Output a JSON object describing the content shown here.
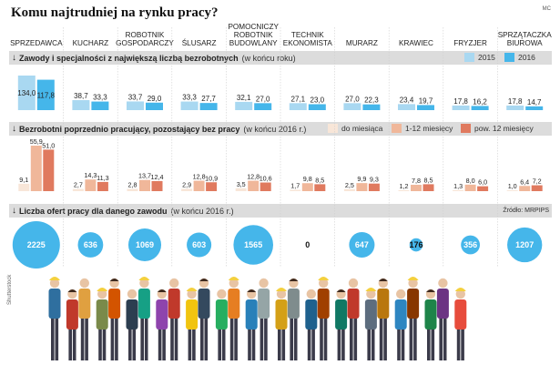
{
  "header": {
    "title": "Komu najtrudniej na rynku pracy?",
    "corner_mark": "MC"
  },
  "colors": {
    "light_blue": "#a9d8f1",
    "mid_blue": "#45b6ea",
    "peach_light": "#f8e6d8",
    "peach_mid": "#f0b79a",
    "salmon": "#e07a5f",
    "band_gray": "#dcdcdc"
  },
  "professions": [
    "SPRZEDAWCA",
    "KUCHARZ",
    "ROBOTNIK GOSPODARCZY",
    "ŚLUSARZ",
    "POMOCNICZY ROBOTNIK BUDOWLANY",
    "TECHNIK EKONOMISTA",
    "MURARZ",
    "KRAWIEC",
    "FRYZJER",
    "SPRZĄTACZKA BIUROWA"
  ],
  "sections": {
    "s1_bold": "Zawody i specjalności  z największą liczbą bezrobotnych",
    "s1_note": "(w końcu roku)",
    "s2_bold": "Bezrobotni poprzednio pracujący, pozostający bez pracy",
    "s2_note": "(w końcu 2016 r.)",
    "s3_bold": "Liczba ofert pracy dla danego zawodu",
    "s3_note": "(w końcu 2016 r.)"
  },
  "source": "Źródło: MRPIPS",
  "photo_credit": "Shutterstock",
  "chart_data": [
    {
      "type": "bar",
      "title": "Zawody i specjalności  z największą liczbą bezrobotnych",
      "categories": [
        "SPRZEDAWCA",
        "KUCHARZ",
        "ROBOTNIK GOSPODARCZY",
        "ŚLUSARZ",
        "POMOCNICZY ROBOTNIK BUDOWLANY",
        "TECHNIK EKONOMISTA",
        "MURARZ",
        "KRAWIEC",
        "FRYZJER",
        "SPRZĄTACZKA BIUROWA"
      ],
      "series": [
        {
          "name": "2015",
          "color": "#a9d8f1",
          "values": [
            134.0,
            38.7,
            33.7,
            33.3,
            32.1,
            27.1,
            27.0,
            23.4,
            17.8,
            17.8
          ]
        },
        {
          "name": "2016",
          "color": "#45b6ea",
          "values": [
            117.8,
            33.3,
            29.0,
            27.7,
            27.0,
            23.0,
            22.3,
            19.7,
            16.2,
            14.7
          ]
        }
      ],
      "labels": [
        [
          "134,0",
          "117,8"
        ],
        [
          "38,7",
          "33,3"
        ],
        [
          "33,7",
          "29,0"
        ],
        [
          "33,3",
          "27,7"
        ],
        [
          "32,1",
          "27,0"
        ],
        [
          "27,1",
          "23,0"
        ],
        [
          "27,0",
          "22,3"
        ],
        [
          "23,4",
          "19,7"
        ],
        [
          "17,8",
          "16,2"
        ],
        [
          "17,8",
          "14,7"
        ]
      ],
      "legend": "top-right"
    },
    {
      "type": "bar",
      "title": "Bezrobotni poprzednio pracujący, pozostający bez pracy",
      "categories": [
        "SPRZEDAWCA",
        "KUCHARZ",
        "ROBOTNIK GOSPODARCZY",
        "ŚLUSARZ",
        "POMOCNICZY ROBOTNIK BUDOWLANY",
        "TECHNIK EKONOMISTA",
        "MURARZ",
        "KRAWIEC",
        "FRYZJER",
        "SPRZĄTACZKA BIUROWA"
      ],
      "series": [
        {
          "name": "do miesiąca",
          "color": "#f8e6d8",
          "values": [
            9.1,
            2.7,
            2.8,
            2.9,
            3.5,
            1.7,
            2.5,
            1.2,
            1.3,
            1.0
          ]
        },
        {
          "name": "1-12 miesięcy",
          "color": "#f0b79a",
          "values": [
            55.9,
            14.3,
            13.7,
            12.8,
            12.8,
            9.8,
            9.9,
            7.8,
            8.0,
            6.4
          ]
        },
        {
          "name": "pow. 12 miesięcy",
          "color": "#e07a5f",
          "values": [
            51.0,
            11.3,
            12.4,
            10.9,
            10.6,
            8.5,
            9.3,
            8.5,
            6.0,
            7.2
          ]
        }
      ],
      "labels": [
        [
          "9,1",
          "55,9",
          "51,0"
        ],
        [
          "2,7",
          "14,3",
          "11,3"
        ],
        [
          "2,8",
          "13,7",
          "12,4"
        ],
        [
          "2,9",
          "12,8",
          "10,9"
        ],
        [
          "3,5",
          "12,8",
          "10,6"
        ],
        [
          "1,7",
          "9,8",
          "8,5"
        ],
        [
          "2,5",
          "9,9",
          "9,3"
        ],
        [
          "1,2",
          "7,8",
          "8,5"
        ],
        [
          "1,3",
          "8,0",
          "6,0"
        ],
        [
          "1,0",
          "6,4",
          "7,2"
        ]
      ],
      "legend": "top-right"
    },
    {
      "type": "bubble",
      "title": "Liczba ofert pracy dla danego zawodu",
      "categories": [
        "SPRZEDAWCA",
        "KUCHARZ",
        "ROBOTNIK GOSPODARCZY",
        "ŚLUSARZ",
        "POMOCNICZY ROBOTNIK BUDOWLANY",
        "TECHNIK EKONOMISTA",
        "MURARZ",
        "KRAWIEC",
        "FRYZJER",
        "SPRZĄTACZKA BIUROWA"
      ],
      "values": [
        2225,
        636,
        1069,
        603,
        1565,
        0,
        647,
        176,
        356,
        1207
      ],
      "labels": [
        "2225",
        "636",
        "1069",
        "603",
        "1565",
        "0",
        "647",
        "176",
        "356",
        "1207"
      ],
      "color": "#45b6ea"
    }
  ]
}
